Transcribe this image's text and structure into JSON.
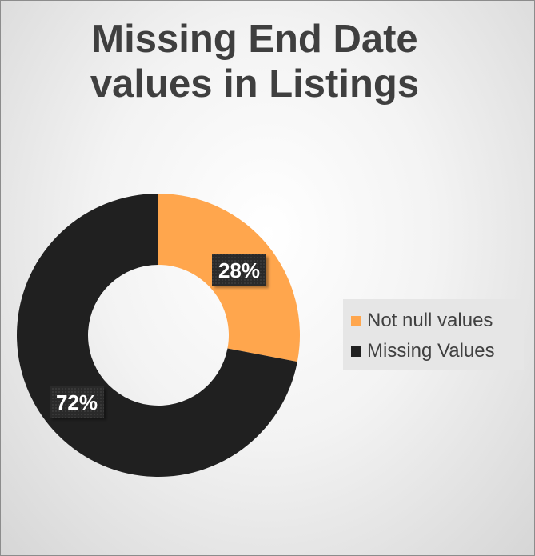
{
  "chart_data": {
    "type": "donut",
    "title_lines": [
      "Missing End Date",
      "values in Listings"
    ],
    "slices": [
      {
        "name": "Not null values",
        "value": 28,
        "label": "28%",
        "color": "#FFA64D"
      },
      {
        "name": "Missing Values",
        "value": 72,
        "label": "72%",
        "color": "#202020"
      }
    ],
    "legend_position": "right",
    "data_labels": "percent"
  }
}
